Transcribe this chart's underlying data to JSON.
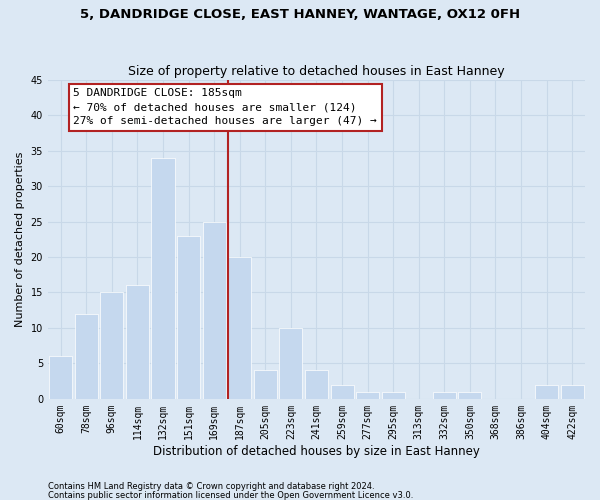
{
  "title1": "5, DANDRIDGE CLOSE, EAST HANNEY, WANTAGE, OX12 0FH",
  "title2": "Size of property relative to detached houses in East Hanney",
  "xlabel": "Distribution of detached houses by size in East Hanney",
  "ylabel": "Number of detached properties",
  "categories": [
    "60sqm",
    "78sqm",
    "96sqm",
    "114sqm",
    "132sqm",
    "151sqm",
    "169sqm",
    "187sqm",
    "205sqm",
    "223sqm",
    "241sqm",
    "259sqm",
    "277sqm",
    "295sqm",
    "313sqm",
    "332sqm",
    "350sqm",
    "368sqm",
    "386sqm",
    "404sqm",
    "422sqm"
  ],
  "values": [
    6,
    12,
    15,
    16,
    34,
    23,
    25,
    20,
    4,
    10,
    4,
    2,
    1,
    1,
    0,
    1,
    1,
    0,
    0,
    2,
    2
  ],
  "bar_color": "#c5d8ee",
  "vline_color": "#b22222",
  "annotation_line1": "5 DANDRIDGE CLOSE: 185sqm",
  "annotation_line2": "← 70% of detached houses are smaller (124)",
  "annotation_line3": "27% of semi-detached houses are larger (47) →",
  "annotation_edgecolor": "#b22222",
  "ylim": [
    0,
    45
  ],
  "yticks": [
    0,
    5,
    10,
    15,
    20,
    25,
    30,
    35,
    40,
    45
  ],
  "grid_color": "#c8d8e8",
  "bg_color": "#dce8f4",
  "footnote1": "Contains HM Land Registry data © Crown copyright and database right 2024.",
  "footnote2": "Contains public sector information licensed under the Open Government Licence v3.0.",
  "title1_fontsize": 9.5,
  "title2_fontsize": 9.0,
  "xlabel_fontsize": 8.5,
  "ylabel_fontsize": 8.0,
  "tick_fontsize": 7.0,
  "annot_fontsize": 8.0,
  "footnote_fontsize": 6.0
}
